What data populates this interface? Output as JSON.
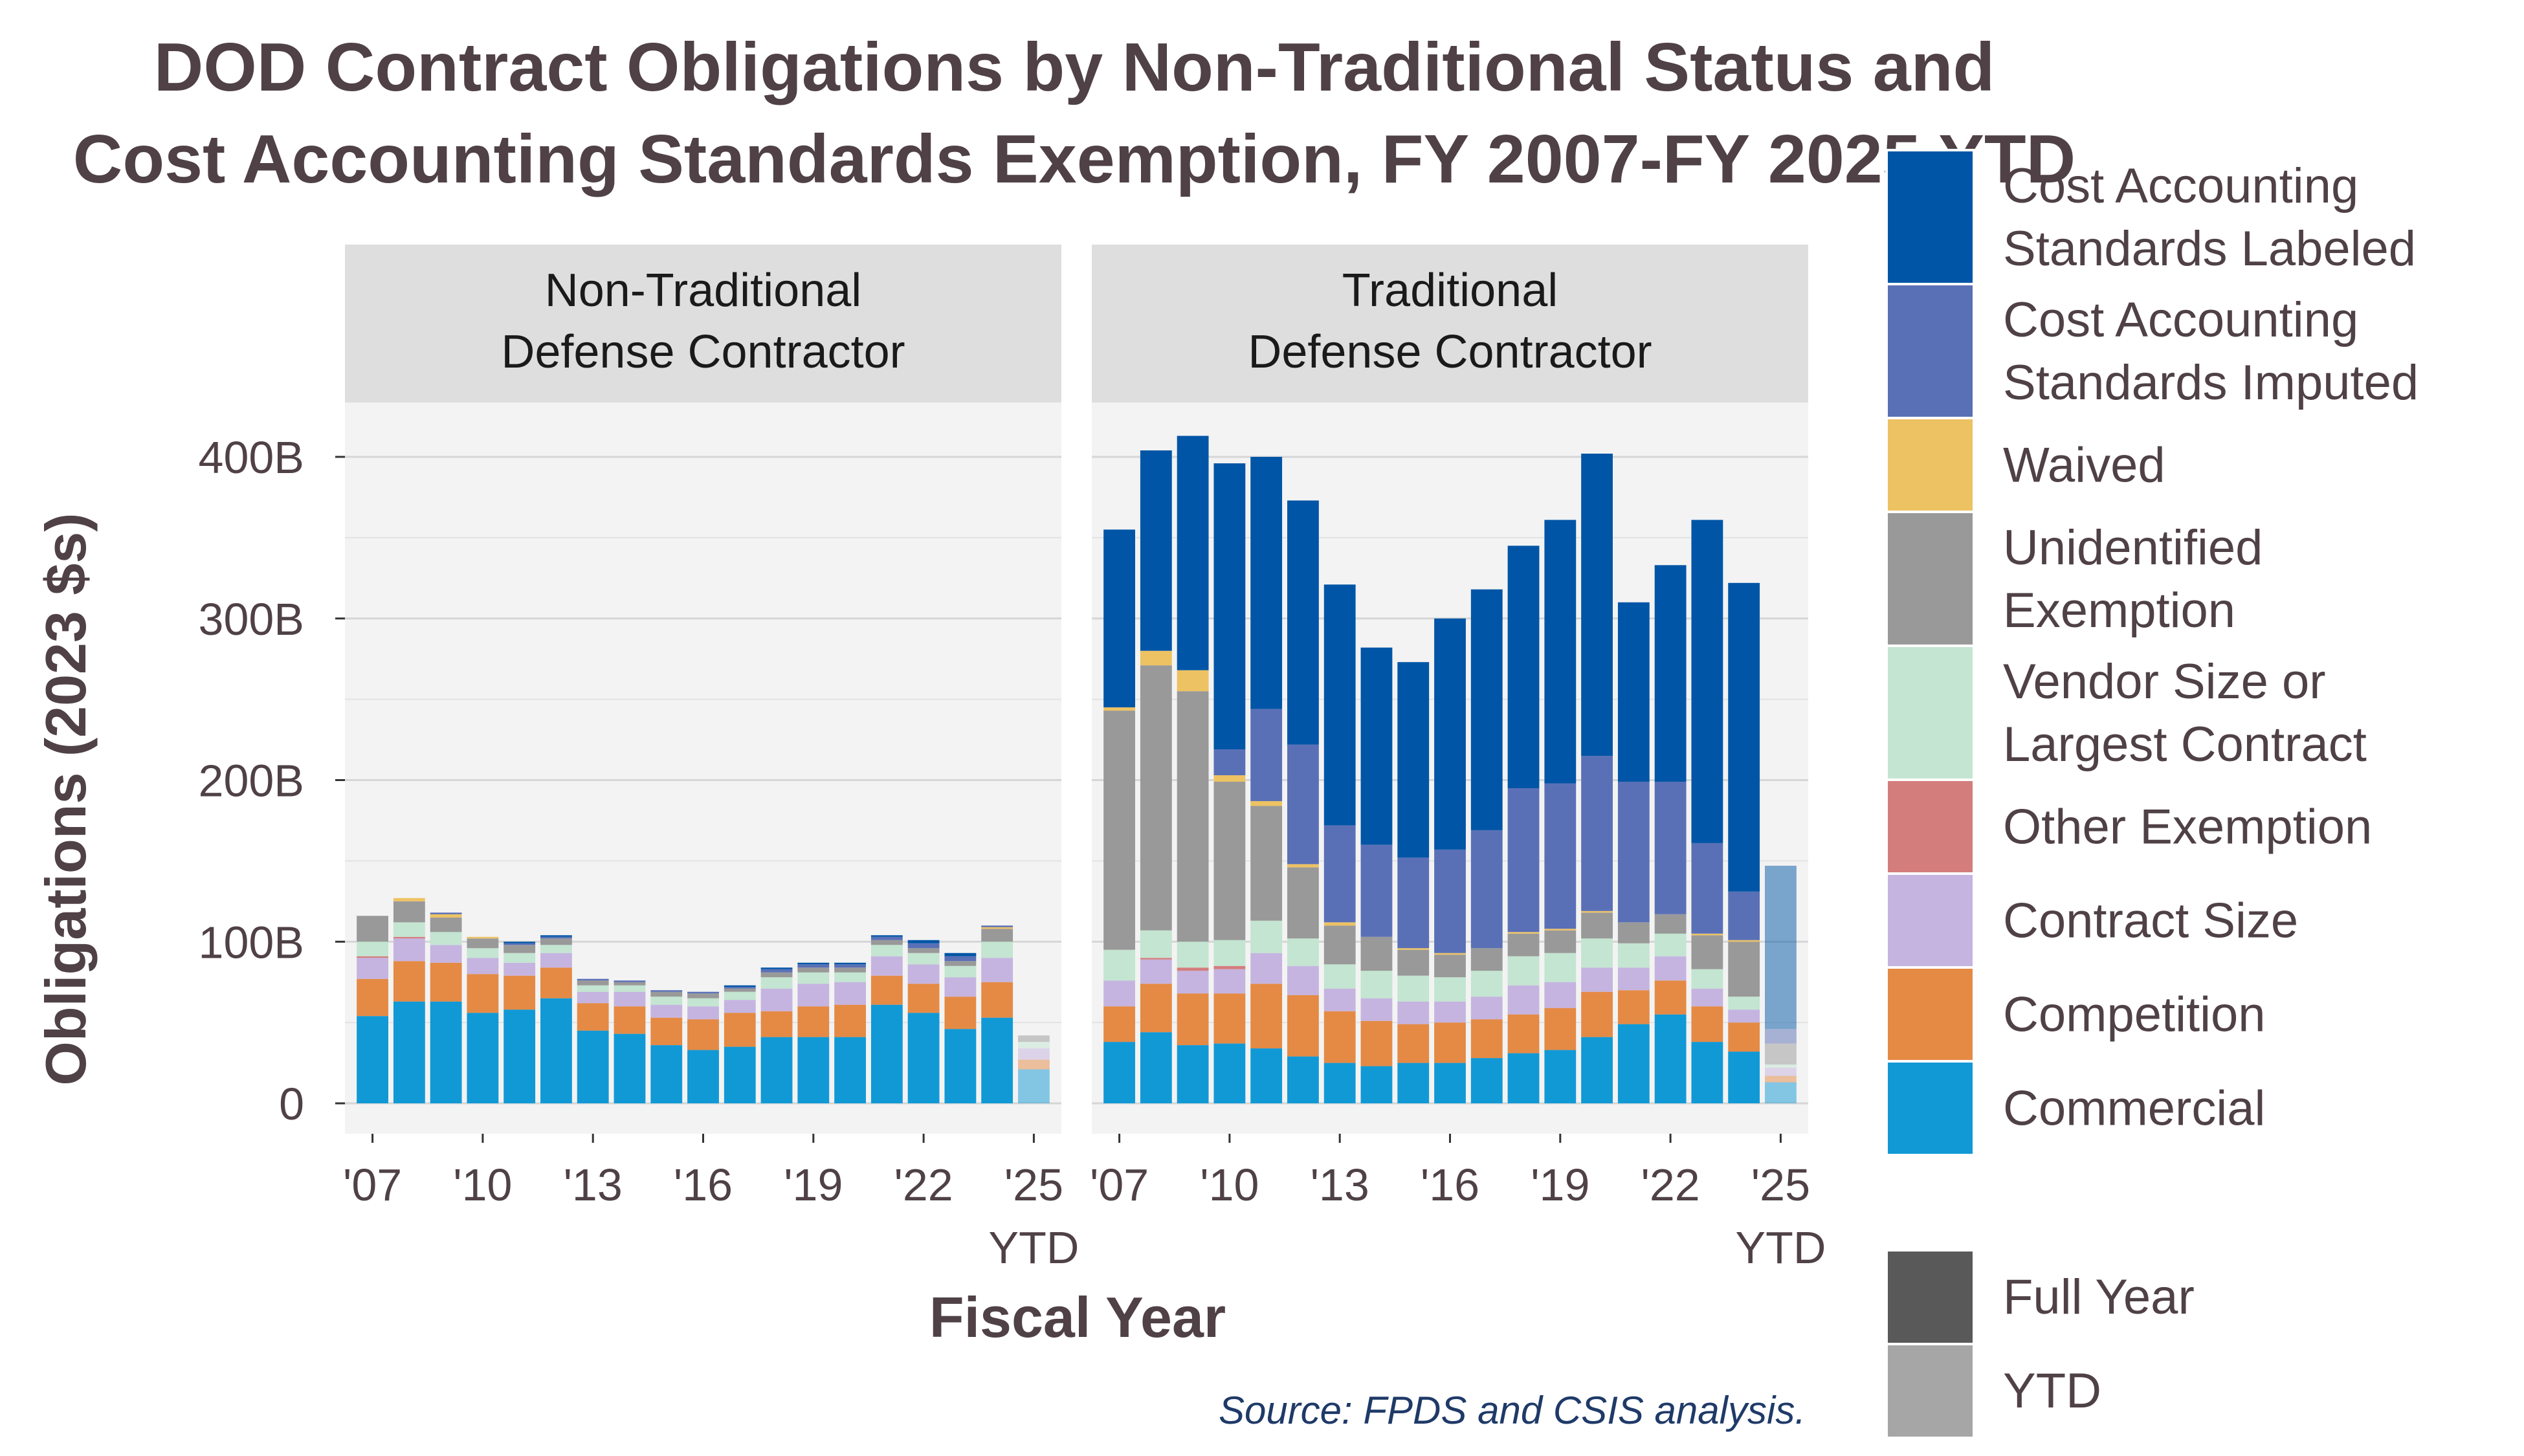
{
  "chart_data": {
    "type": "bar",
    "stacked": true,
    "title": [
      "DOD Contract Obligations by Non-Traditional Status and",
      "Cost Accounting Standards Exemption, FY 2007-FY 2025 YTD"
    ],
    "xlabel": "Fiscal Year",
    "ylabel": "Obligations (2023 $s)",
    "source": "Source: FPDS and CSIS analysis.",
    "ylim": [
      0,
      430
    ],
    "y_ticks": [
      {
        "value": 0,
        "label": "0"
      },
      {
        "value": 100,
        "label": "100B"
      },
      {
        "value": 200,
        "label": "200B"
      },
      {
        "value": 300,
        "label": "300B"
      },
      {
        "value": 400,
        "label": "400B"
      }
    ],
    "x": [
      2007,
      2008,
      2009,
      2010,
      2011,
      2012,
      2013,
      2014,
      2015,
      2016,
      2017,
      2018,
      2019,
      2020,
      2021,
      2022,
      2023,
      2024,
      2025
    ],
    "x_ticks": [
      {
        "year": 2007,
        "label": "'07"
      },
      {
        "year": 2010,
        "label": "'10"
      },
      {
        "year": 2013,
        "label": "'13"
      },
      {
        "year": 2016,
        "label": "'16"
      },
      {
        "year": 2019,
        "label": "'19"
      },
      {
        "year": 2022,
        "label": "'22"
      },
      {
        "year": 2025,
        "label": "'25",
        "sublabel": "YTD"
      }
    ],
    "ytd_year": 2025,
    "categories": [
      {
        "key": "commercial",
        "name": "Commercial",
        "color": "#1199d6"
      },
      {
        "key": "competition",
        "name": "Competition",
        "color": "#e48a45"
      },
      {
        "key": "contract_size",
        "name": "Contract Size",
        "color": "#c5b4e0"
      },
      {
        "key": "other_exemption",
        "name": "Other Exemption",
        "color": "#d47d7d"
      },
      {
        "key": "vendor_size",
        "name": "Vendor Size or Largest Contract",
        "color": "#c3e5d1"
      },
      {
        "key": "unidentified",
        "name": "Unidentified Exemption",
        "color": "#999999"
      },
      {
        "key": "waived",
        "name": "Waived",
        "color": "#edc263"
      },
      {
        "key": "cas_imputed",
        "name": "Cost Accounting Standards Imputed",
        "color": "#5a70b6"
      },
      {
        "key": "cas_labeled",
        "name": "Cost Accounting Standards Labeled",
        "color": "#0055a6"
      }
    ],
    "legend_categories": [
      [
        "Cost Accounting",
        "Standards Labeled"
      ],
      [
        "Cost Accounting",
        "Standards Imputed"
      ],
      [
        "Waived"
      ],
      [
        "Unidentified",
        "Exemption"
      ],
      [
        "Vendor Size or",
        "Largest Contract"
      ],
      [
        "Other Exemption"
      ],
      [
        "Contract Size"
      ],
      [
        "Competition"
      ],
      [
        "Commercial"
      ]
    ],
    "legend_period": [
      {
        "name": "Full Year",
        "color": "#595959"
      },
      {
        "name": "YTD",
        "color": "#a6a6a6"
      }
    ],
    "legend_placement": "right",
    "grid": true,
    "panels": [
      {
        "label": [
          "Non-Traditional",
          "Defense Contractor"
        ],
        "series": [
          {
            "key": "commercial",
            "values": [
              54,
              63,
              63,
              56,
              58,
              65,
              45,
              43,
              36,
              33,
              35,
              41,
              41,
              41,
              61,
              56,
              46,
              53,
              21
            ]
          },
          {
            "key": "competition",
            "values": [
              23,
              25,
              24,
              24,
              21,
              19,
              17,
              17,
              17,
              19,
              21,
              16,
              19,
              20,
              18,
              18,
              20,
              22,
              6
            ]
          },
          {
            "key": "contract_size",
            "values": [
              13,
              14,
              11,
              10,
              8,
              9,
              7,
              9,
              8,
              8,
              8,
              14,
              14,
              14,
              12,
              12,
              12,
              15,
              7
            ]
          },
          {
            "key": "other_exemption",
            "values": [
              1,
              1,
              0,
              0,
              0,
              0,
              0,
              0,
              0,
              0,
              0,
              0,
              0,
              0,
              0,
              0,
              0,
              0,
              0
            ]
          },
          {
            "key": "vendor_size",
            "values": [
              9,
              9,
              8,
              6,
              6,
              5,
              4,
              4,
              5,
              5,
              5,
              7,
              7,
              6,
              7,
              7,
              7,
              10,
              4
            ]
          },
          {
            "key": "unidentified",
            "values": [
              16,
              13,
              9,
              6,
              5,
              4,
              3,
              2,
              3,
              3,
              2,
              3,
              3,
              3,
              3,
              3,
              3,
              8,
              4
            ]
          },
          {
            "key": "waived",
            "values": [
              0,
              2,
              2,
              1,
              0,
              0,
              0,
              0,
              0,
              0,
              0,
              0,
              0,
              0,
              0,
              0,
              0,
              1,
              0
            ]
          },
          {
            "key": "cas_imputed",
            "values": [
              0,
              0,
              1,
              0,
              1,
              1,
              1,
              1,
              1,
              1,
              1,
              2,
              2,
              2,
              2,
              3,
              3,
              1,
              0
            ]
          },
          {
            "key": "cas_labeled",
            "values": [
              0,
              0,
              0,
              0,
              1,
              1,
              0,
              0,
              0,
              0,
              1,
              1,
              1,
              1,
              1,
              2,
              2,
              0,
              0
            ]
          }
        ]
      },
      {
        "label": [
          "Traditional",
          "Defense Contractor"
        ],
        "series": [
          {
            "key": "commercial",
            "values": [
              38,
              44,
              36,
              37,
              34,
              29,
              25,
              23,
              25,
              25,
              28,
              31,
              33,
              41,
              49,
              55,
              38,
              32,
              13
            ]
          },
          {
            "key": "competition",
            "values": [
              22,
              30,
              32,
              31,
              40,
              38,
              32,
              28,
              24,
              25,
              24,
              24,
              26,
              28,
              21,
              21,
              22,
              18,
              4
            ]
          },
          {
            "key": "contract_size",
            "values": [
              16,
              15,
              14,
              15,
              19,
              18,
              14,
              14,
              14,
              13,
              14,
              18,
              16,
              15,
              14,
              15,
              11,
              8,
              5
            ]
          },
          {
            "key": "other_exemption",
            "values": [
              0,
              1,
              2,
              2,
              0,
              0,
              0,
              0,
              0,
              0,
              0,
              0,
              0,
              0,
              0,
              0,
              0,
              0,
              0
            ]
          },
          {
            "key": "vendor_size",
            "values": [
              19,
              17,
              16,
              16,
              20,
              17,
              15,
              17,
              16,
              15,
              16,
              18,
              18,
              18,
              15,
              14,
              12,
              8,
              2
            ]
          },
          {
            "key": "unidentified",
            "values": [
              148,
              164,
              155,
              98,
              71,
              44,
              24,
              21,
              16,
              14,
              14,
              14,
              14,
              16,
              13,
              12,
              21,
              34,
              13
            ]
          },
          {
            "key": "waived",
            "values": [
              2,
              9,
              13,
              4,
              3,
              2,
              2,
              0,
              1,
              1,
              0,
              1,
              1,
              1,
              0,
              0,
              1,
              1,
              0
            ]
          },
          {
            "key": "cas_imputed",
            "values": [
              0,
              0,
              0,
              16,
              57,
              74,
              60,
              57,
              56,
              64,
              73,
              89,
              90,
              96,
              87,
              82,
              56,
              30,
              9
            ]
          },
          {
            "key": "cas_labeled",
            "values": [
              110,
              124,
              145,
              177,
              156,
              151,
              149,
              122,
              121,
              143,
              149,
              150,
              163,
              187,
              111,
              134,
              200,
              191,
              101
            ]
          }
        ]
      }
    ]
  }
}
